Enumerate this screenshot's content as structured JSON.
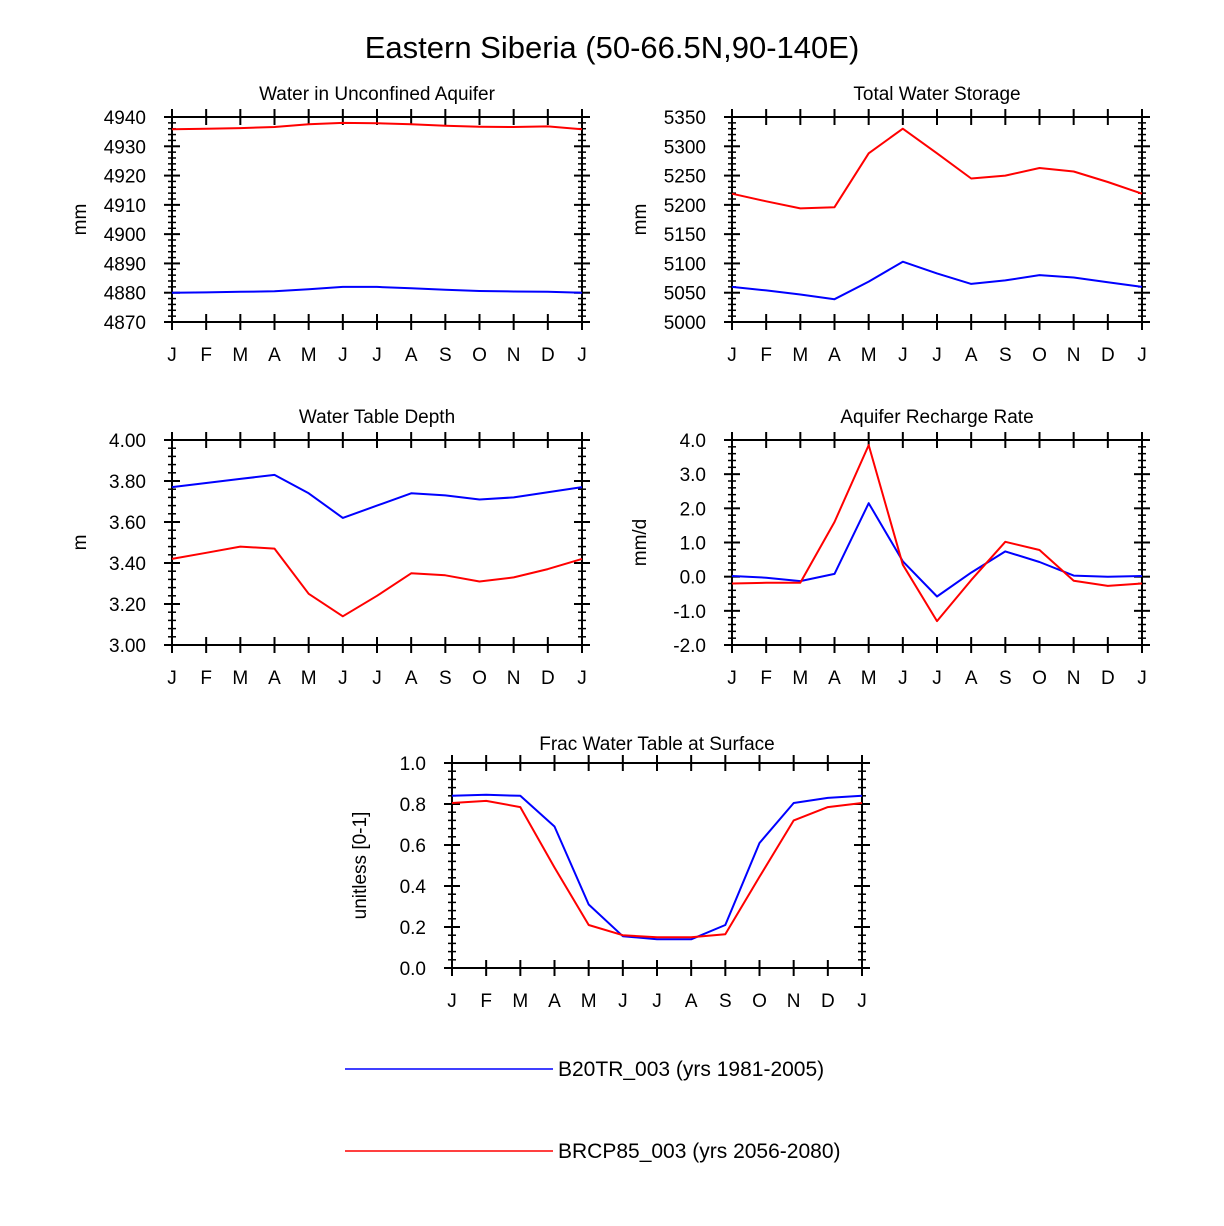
{
  "figure_title": "Eastern Siberia (50-66.5N,90-140E)",
  "months": [
    "J",
    "F",
    "M",
    "A",
    "M",
    "J",
    "J",
    "A",
    "S",
    "O",
    "N",
    "D",
    "J"
  ],
  "legend": [
    {
      "label": "B20TR_003 (yrs 1981-2005)",
      "color": "#0000ff"
    },
    {
      "label": "BRCP85_003 (yrs 2056-2080)",
      "color": "#ff0000"
    }
  ],
  "chart_data": [
    {
      "type": "line",
      "title": "Water in Unconfined Aquifer",
      "ylabel": "mm",
      "ylim": [
        4870,
        4940
      ],
      "yticks": [
        4870,
        4880,
        4890,
        4900,
        4910,
        4920,
        4930,
        4940
      ],
      "tick_labels": [
        "4870",
        "4880",
        "4890",
        "4900",
        "4910",
        "4920",
        "4930",
        "4940"
      ],
      "categories": [
        "J",
        "F",
        "M",
        "A",
        "M",
        "J",
        "J",
        "A",
        "S",
        "O",
        "N",
        "D",
        "J"
      ],
      "series": [
        {
          "name": "B20TR_003 (yrs 1981-2005)",
          "color": "#0000ff",
          "values": [
            4880.0,
            4880.1,
            4880.3,
            4880.5,
            4881.2,
            4882.0,
            4882.0,
            4881.5,
            4881.0,
            4880.6,
            4880.4,
            4880.3,
            4880.0
          ]
        },
        {
          "name": "BRCP85_003 (yrs 2056-2080)",
          "color": "#ff0000",
          "values": [
            4935.8,
            4936.0,
            4936.2,
            4936.6,
            4937.5,
            4938.0,
            4937.9,
            4937.5,
            4937.0,
            4936.7,
            4936.6,
            4936.8,
            4935.8
          ]
        }
      ]
    },
    {
      "type": "line",
      "title": "Total Water Storage",
      "ylabel": "mm",
      "ylim": [
        5000,
        5350
      ],
      "yticks": [
        5000,
        5050,
        5100,
        5150,
        5200,
        5250,
        5300,
        5350
      ],
      "tick_labels": [
        "5000",
        "5050",
        "5100",
        "5150",
        "5200",
        "5250",
        "5300",
        "5350"
      ],
      "categories": [
        "J",
        "F",
        "M",
        "A",
        "M",
        "J",
        "J",
        "A",
        "S",
        "O",
        "N",
        "D",
        "J"
      ],
      "series": [
        {
          "name": "B20TR_003 (yrs 1981-2005)",
          "color": "#0000ff",
          "values": [
            5060,
            5054,
            5047,
            5039,
            5069,
            5103,
            5083,
            5065,
            5071,
            5080,
            5076,
            5068,
            5060
          ]
        },
        {
          "name": "BRCP85_003 (yrs 2056-2080)",
          "color": "#ff0000",
          "values": [
            5219,
            5206,
            5194,
            5196,
            5288,
            5330,
            5288,
            5245,
            5250,
            5263,
            5257,
            5239,
            5219
          ]
        }
      ]
    },
    {
      "type": "line",
      "title": "Water Table Depth",
      "ylabel": "m",
      "ylim": [
        3.0,
        4.0
      ],
      "yticks": [
        3.0,
        3.2,
        3.4,
        3.6,
        3.8,
        4.0
      ],
      "tick_labels": [
        "3.00",
        "3.20",
        "3.40",
        "3.60",
        "3.80",
        "4.00"
      ],
      "categories": [
        "J",
        "F",
        "M",
        "A",
        "M",
        "J",
        "J",
        "A",
        "S",
        "O",
        "N",
        "D",
        "J"
      ],
      "series": [
        {
          "name": "B20TR_003 (yrs 1981-2005)",
          "color": "#0000ff",
          "values": [
            3.77,
            3.79,
            3.81,
            3.83,
            3.74,
            3.62,
            3.68,
            3.74,
            3.73,
            3.71,
            3.72,
            3.745,
            3.77
          ]
        },
        {
          "name": "BRCP85_003 (yrs 2056-2080)",
          "color": "#ff0000",
          "values": [
            3.42,
            3.45,
            3.48,
            3.47,
            3.25,
            3.14,
            3.24,
            3.35,
            3.34,
            3.31,
            3.33,
            3.37,
            3.42
          ]
        }
      ]
    },
    {
      "type": "line",
      "title": "Aquifer Recharge Rate",
      "ylabel": "mm/d",
      "ylim": [
        -2.0,
        4.0
      ],
      "yticks": [
        -2.0,
        -1.0,
        0.0,
        1.0,
        2.0,
        3.0,
        4.0
      ],
      "tick_labels": [
        "-2.0",
        "-1.0",
        "0.0",
        "1.0",
        "2.0",
        "3.0",
        "4.0"
      ],
      "categories": [
        "J",
        "F",
        "M",
        "A",
        "M",
        "J",
        "J",
        "A",
        "S",
        "O",
        "N",
        "D",
        "J"
      ],
      "series": [
        {
          "name": "B20TR_003 (yrs 1981-2005)",
          "color": "#0000ff",
          "values": [
            0.02,
            -0.03,
            -0.13,
            0.08,
            2.15,
            0.45,
            -0.58,
            0.12,
            0.74,
            0.43,
            0.03,
            0.0,
            0.02
          ]
        },
        {
          "name": "BRCP85_003 (yrs 2056-2080)",
          "color": "#ff0000",
          "values": [
            -0.2,
            -0.18,
            -0.18,
            1.6,
            3.85,
            0.35,
            -1.3,
            -0.1,
            1.02,
            0.78,
            -0.12,
            -0.27,
            -0.2
          ]
        }
      ]
    },
    {
      "type": "line",
      "title": "Frac Water Table at Surface",
      "ylabel": "unitless [0-1]",
      "ylim": [
        0.0,
        1.0
      ],
      "yticks": [
        0.0,
        0.2,
        0.4,
        0.6,
        0.8,
        1.0
      ],
      "tick_labels": [
        "0.0",
        "0.2",
        "0.4",
        "0.6",
        "0.8",
        "1.0"
      ],
      "categories": [
        "J",
        "F",
        "M",
        "A",
        "M",
        "J",
        "J",
        "A",
        "S",
        "O",
        "N",
        "D",
        "J"
      ],
      "series": [
        {
          "name": "B20TR_003 (yrs 1981-2005)",
          "color": "#0000ff",
          "values": [
            0.84,
            0.845,
            0.84,
            0.69,
            0.31,
            0.155,
            0.14,
            0.14,
            0.21,
            0.61,
            0.805,
            0.83,
            0.84
          ]
        },
        {
          "name": "BRCP85_003 (yrs 2056-2080)",
          "color": "#ff0000",
          "values": [
            0.805,
            0.815,
            0.785,
            0.49,
            0.21,
            0.16,
            0.15,
            0.15,
            0.165,
            0.445,
            0.72,
            0.785,
            0.805
          ]
        }
      ]
    }
  ]
}
